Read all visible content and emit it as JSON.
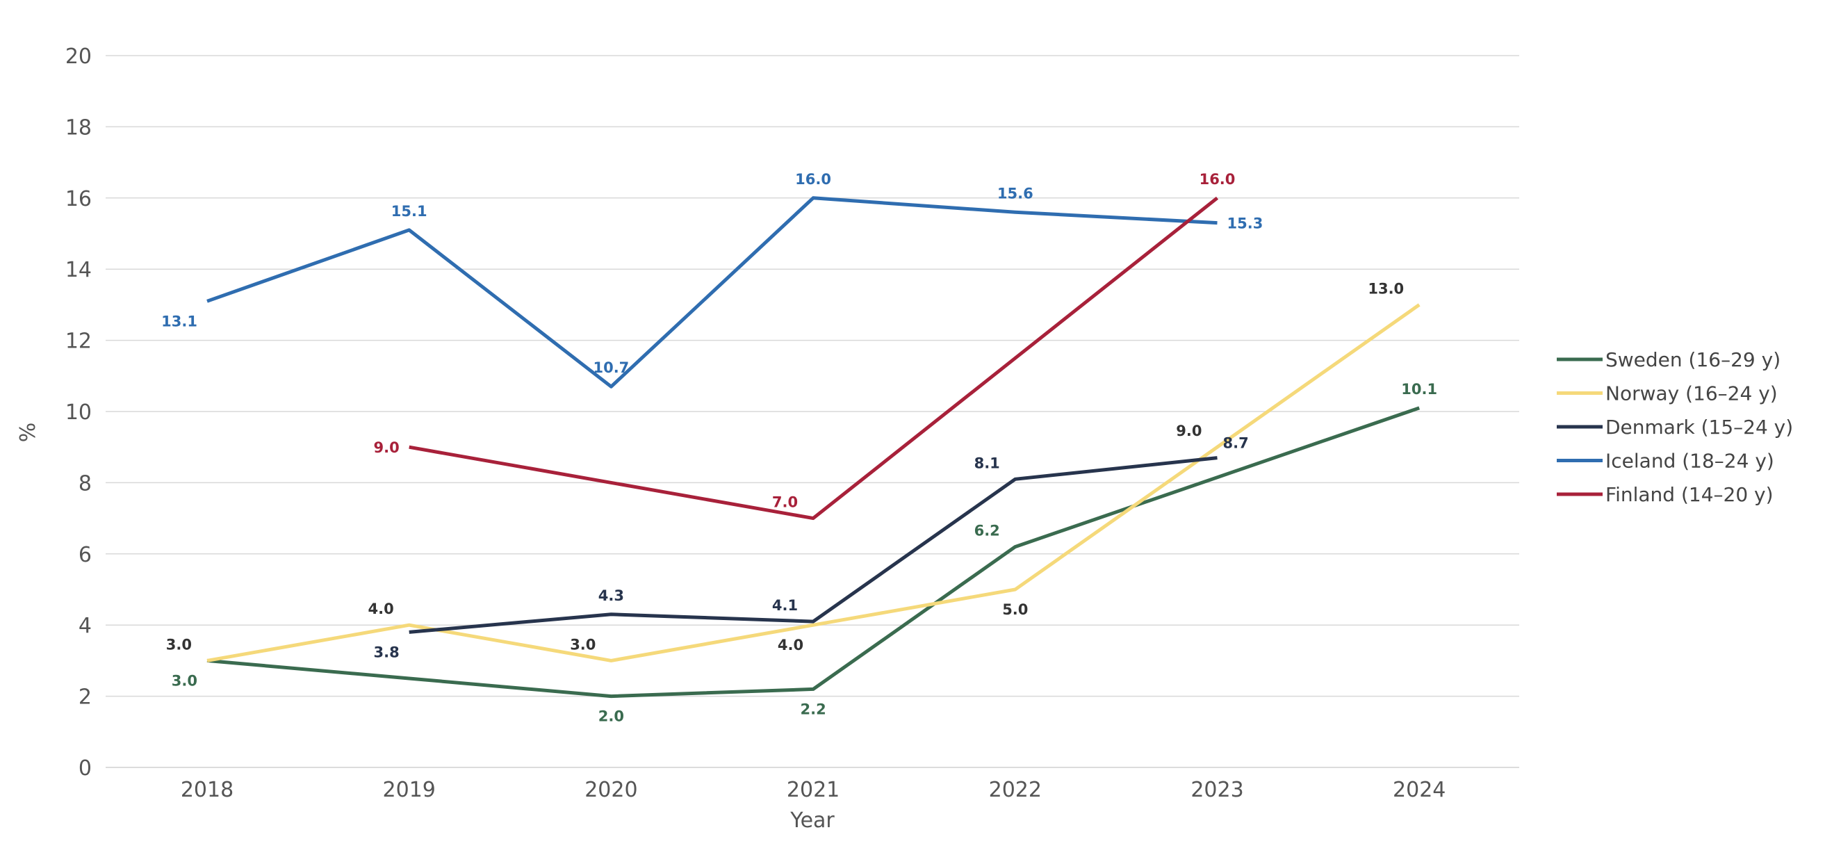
{
  "chart_data": {
    "type": "line",
    "title": "",
    "xlabel": "Year",
    "ylabel": "%",
    "x": [
      2018,
      2019,
      2020,
      2021,
      2022,
      2023,
      2024
    ],
    "x_tick_labels": [
      "2018",
      "2019",
      "2020",
      "2021",
      "2022",
      "2023",
      "2024"
    ],
    "ylim": [
      0,
      20
    ],
    "y_ticks": [
      0,
      2,
      4,
      6,
      8,
      10,
      12,
      14,
      16,
      18,
      20
    ],
    "y_tick_labels": [
      "0",
      "2",
      "4",
      "6",
      "8",
      "10",
      "12",
      "14",
      "16",
      "18",
      "20"
    ],
    "grid": true,
    "legend_position": "right",
    "series": [
      {
        "name": "Sweden (16–29 y)",
        "color": "#3a6b4f",
        "values": [
          3.0,
          null,
          2.0,
          2.2,
          6.2,
          null,
          10.1
        ],
        "line_values": [
          3.0,
          2.5,
          2.0,
          2.2,
          6.2,
          8.15,
          10.1
        ],
        "labels": [
          "3.0",
          null,
          "2.0",
          "2.2",
          "6.2",
          null,
          "10.1"
        ],
        "label_pos": [
          "below-left",
          null,
          "below",
          "below",
          "above-left",
          null,
          "above"
        ]
      },
      {
        "name": "Norway (16–24 y)",
        "color": "#f5d97a",
        "values": [
          3.0,
          4.0,
          3.0,
          4.0,
          5.0,
          9.0,
          13.0
        ],
        "line_values": [
          3.0,
          4.0,
          3.0,
          4.0,
          5.0,
          9.0,
          13.0
        ],
        "labels": [
          "3.0",
          "4.0",
          "3.0",
          "4.0",
          "5.0",
          "9.0",
          "13.0"
        ],
        "label_pos": [
          "above-left",
          "above-left",
          "above-left",
          "below-left",
          "below",
          "above-left",
          "above-left"
        ]
      },
      {
        "name": "Denmark (15–24 y)",
        "color": "#27344d",
        "values": [
          null,
          3.8,
          4.3,
          4.1,
          8.1,
          8.7,
          null
        ],
        "line_values": [
          null,
          3.8,
          4.3,
          4.1,
          8.1,
          8.7,
          null
        ],
        "labels": [
          null,
          "3.8",
          "4.3",
          "4.1",
          "8.1",
          "8.7",
          null
        ],
        "label_pos": [
          null,
          "below-left",
          "above",
          "above-left",
          "above-left",
          "above-right",
          null
        ]
      },
      {
        "name": "Iceland (18–24 y)",
        "color": "#2f6db0",
        "values": [
          13.1,
          15.1,
          10.7,
          16.0,
          15.6,
          15.3,
          null
        ],
        "line_values": [
          13.1,
          15.1,
          10.7,
          16.0,
          15.6,
          15.3,
          null
        ],
        "labels": [
          "13.1",
          "15.1",
          "10.7",
          "16.0",
          "15.6",
          "15.3",
          null
        ],
        "label_pos": [
          "below-left",
          "above",
          "above",
          "above",
          "above",
          "right",
          null
        ]
      },
      {
        "name": "Finland (14–20 y)",
        "color": "#a8213a",
        "values": [
          null,
          9.0,
          null,
          7.0,
          null,
          16.0,
          null
        ],
        "line_values": [
          null,
          9.0,
          8.0,
          7.0,
          11.5,
          16.0,
          null
        ],
        "labels": [
          null,
          "9.0",
          null,
          "7.0",
          null,
          "16.0",
          null
        ],
        "label_pos": [
          null,
          "left",
          null,
          "above-left",
          null,
          "above",
          null
        ]
      }
    ]
  }
}
